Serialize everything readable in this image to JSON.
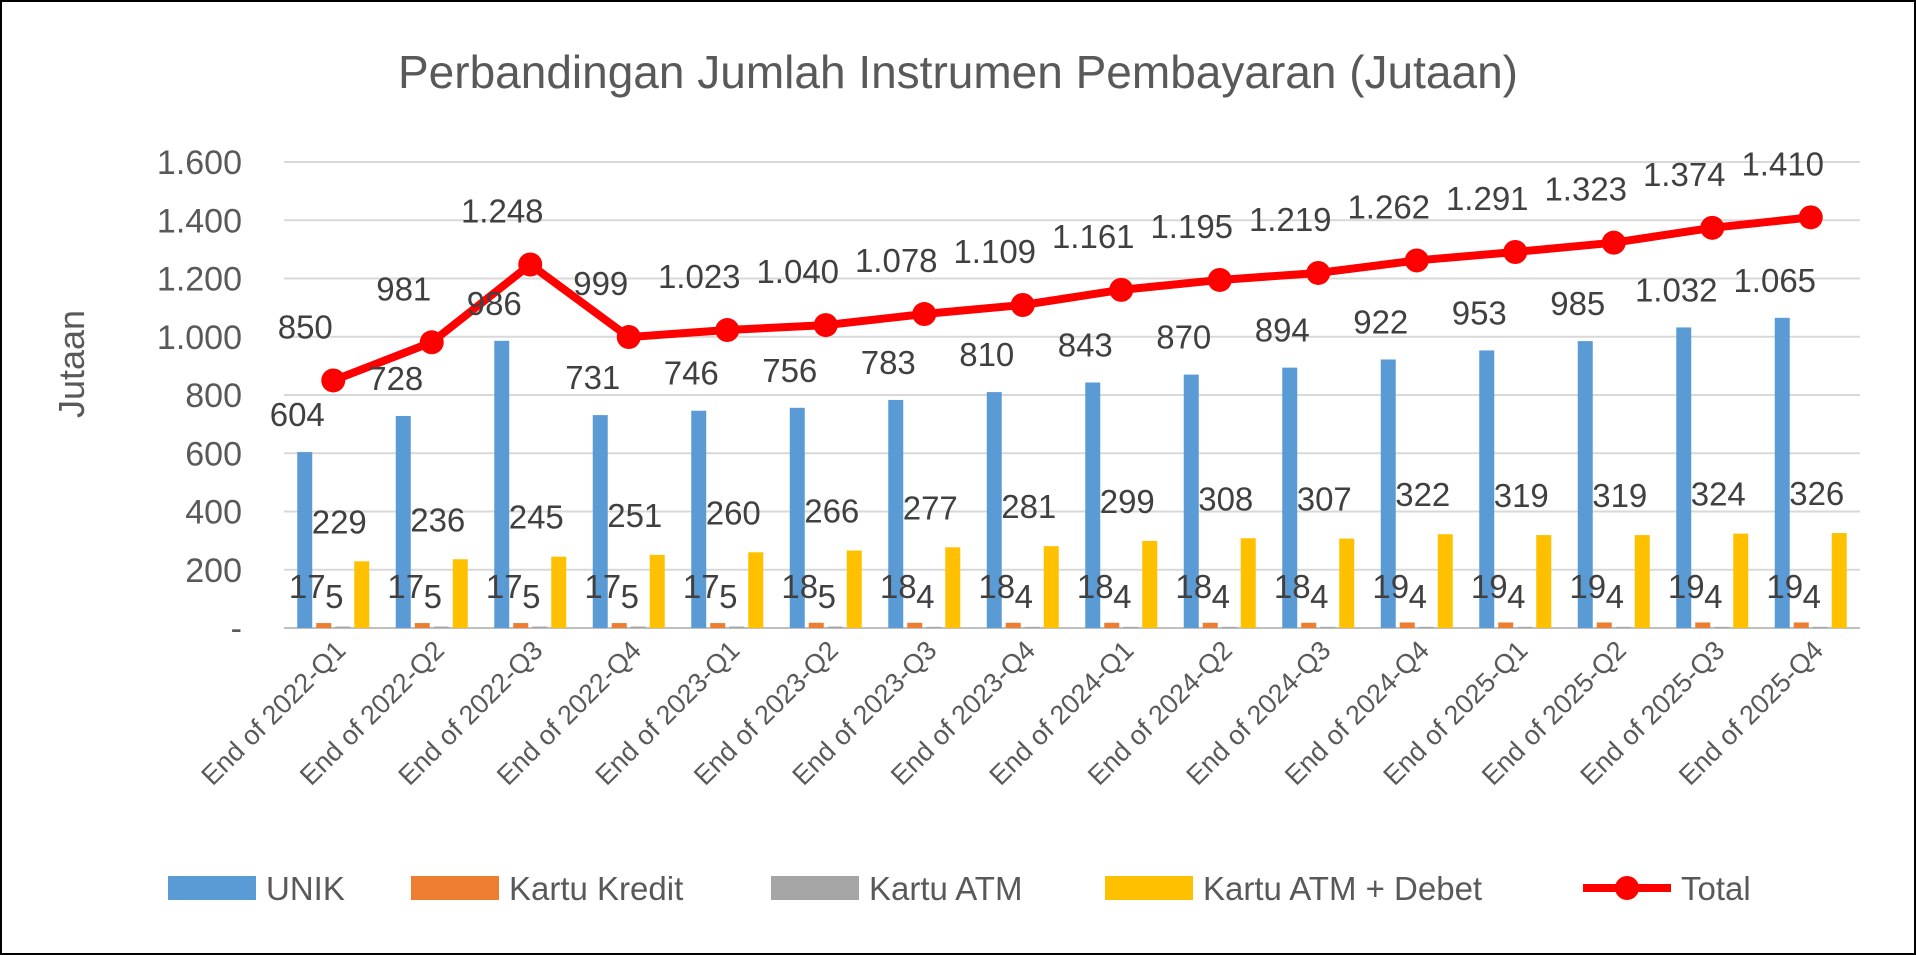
{
  "chart_data": {
    "type": "bar",
    "title": "Perbandingan Jumlah Instrumen Pembayaran (Jutaan)",
    "ylabel": "Jutaan",
    "xlabel": "",
    "ylim": [
      0,
      1600
    ],
    "y_ticks": [
      {
        "value": 0,
        "label": "-"
      },
      {
        "value": 200,
        "label": "200"
      },
      {
        "value": 400,
        "label": "400"
      },
      {
        "value": 600,
        "label": "600"
      },
      {
        "value": 800,
        "label": "800"
      },
      {
        "value": 1000,
        "label": "1.000"
      },
      {
        "value": 1200,
        "label": "1.200"
      },
      {
        "value": 1400,
        "label": "1.400"
      },
      {
        "value": 1600,
        "label": "1.600"
      }
    ],
    "grid": true,
    "legend_position": "bottom",
    "categories": [
      "End of 2022-Q1",
      "End of 2022-Q2",
      "End of 2022-Q3",
      "End of 2022-Q4",
      "End of 2023-Q1",
      "End of 2023-Q2",
      "End of 2023-Q3",
      "End of 2023-Q4",
      "End of 2024-Q1",
      "End of 2024-Q2",
      "End of 2024-Q3",
      "End of 2024-Q4",
      "End of 2025-Q1",
      "End of 2025-Q2",
      "End of 2025-Q3",
      "End of 2025-Q4"
    ],
    "series": [
      {
        "name": "UNIK",
        "kind": "bar",
        "color": "#5B9BD5",
        "values": [
          604,
          728,
          986,
          731,
          746,
          756,
          783,
          810,
          843,
          870,
          894,
          922,
          953,
          985,
          1032,
          1065
        ],
        "labels": [
          "604",
          "728",
          "986",
          "731",
          "746",
          "756",
          "783",
          "810",
          "843",
          "870",
          "894",
          "922",
          "953",
          "985",
          "1.032",
          "1.065"
        ]
      },
      {
        "name": "Kartu Kredit",
        "kind": "bar",
        "color": "#ED7D31",
        "values": [
          17,
          17,
          17,
          17,
          17,
          18,
          18,
          18,
          18,
          18,
          18,
          19,
          19,
          19,
          19,
          19
        ],
        "labels": [
          "17",
          "17",
          "17",
          "17",
          "17",
          "18",
          "18",
          "18",
          "18",
          "18",
          "18",
          "19",
          "19",
          "19",
          "19",
          "19"
        ]
      },
      {
        "name": "Kartu ATM",
        "kind": "bar",
        "color": "#A5A5A5",
        "values": [
          5,
          5,
          5,
          5,
          5,
          5,
          4,
          4,
          4,
          4,
          4,
          4,
          4,
          4,
          4,
          4
        ],
        "labels": [
          "5",
          "5",
          "5",
          "5",
          "5",
          "5",
          "4",
          "4",
          "4",
          "4",
          "4",
          "4",
          "4",
          "4",
          "4",
          "4"
        ]
      },
      {
        "name": "Kartu ATM + Debet",
        "kind": "bar",
        "color": "#FFC000",
        "values": [
          229,
          236,
          245,
          251,
          260,
          266,
          277,
          281,
          299,
          308,
          307,
          322,
          319,
          319,
          324,
          326
        ],
        "labels": [
          "229",
          "236",
          "245",
          "251",
          "260",
          "266",
          "277",
          "281",
          "299",
          "308",
          "307",
          "322",
          "319",
          "319",
          "324",
          "326"
        ]
      },
      {
        "name": "Total",
        "kind": "line",
        "color": "#FF0000",
        "values": [
          850,
          981,
          1248,
          999,
          1023,
          1040,
          1078,
          1109,
          1161,
          1195,
          1219,
          1262,
          1291,
          1323,
          1374,
          1410
        ],
        "labels": [
          "850",
          "981",
          "1.248",
          "999",
          "1.023",
          "1.040",
          "1.078",
          "1.109",
          "1.161",
          "1.195",
          "1.219",
          "1.262",
          "1.291",
          "1.323",
          "1.374",
          "1.410"
        ]
      }
    ]
  },
  "colors": {
    "grid": "#D9D9D9",
    "axis": "#BFBFBF",
    "text": "#595959",
    "label_text": "#404040"
  }
}
